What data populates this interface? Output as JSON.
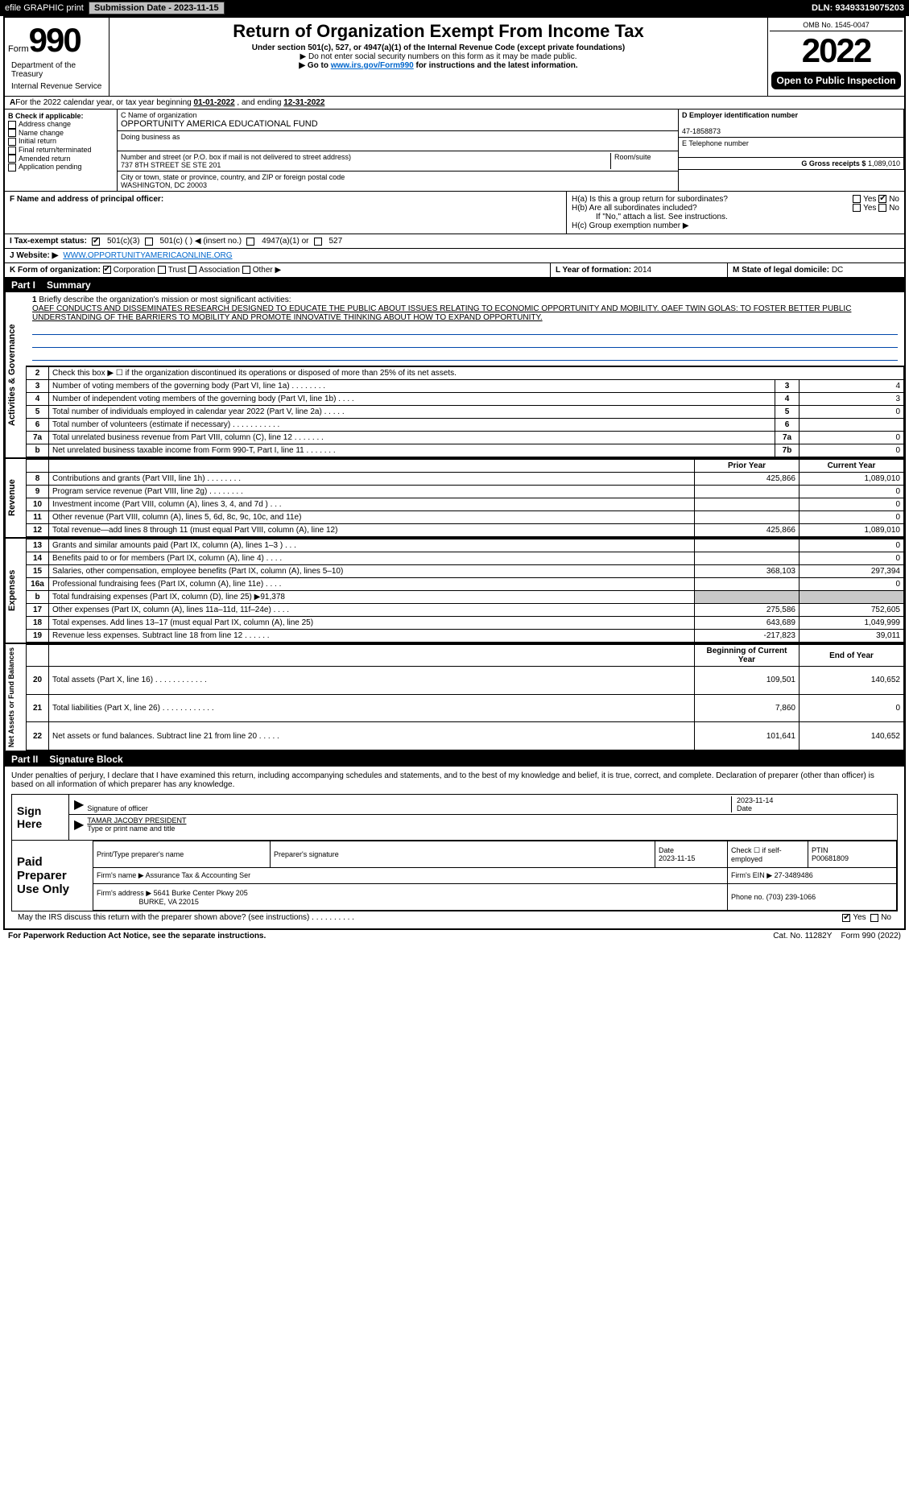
{
  "topbar": {
    "efile": "efile GRAPHIC print",
    "submission_label": "Submission Date - 2023-11-15",
    "dln": "DLN: 93493319075203"
  },
  "header": {
    "form_word": "Form",
    "form_num": "990",
    "title": "Return of Organization Exempt From Income Tax",
    "subtitle": "Under section 501(c), 527, or 4947(a)(1) of the Internal Revenue Code (except private foundations)",
    "warn": "▶ Do not enter social security numbers on this form as it may be made public.",
    "goto_pre": "▶ Go to ",
    "goto_link": "www.irs.gov/Form990",
    "goto_post": " for instructions and the latest information.",
    "omb": "OMB No. 1545-0047",
    "year": "2022",
    "open": "Open to Public Inspection",
    "dept": "Department of the Treasury",
    "irs": "Internal Revenue Service"
  },
  "A": {
    "text_pre": "For the 2022 calendar year, or tax year beginning ",
    "begin": "01-01-2022",
    "mid": " , and ending ",
    "end": "12-31-2022"
  },
  "B": {
    "label": "B Check if applicable:",
    "opts": [
      "Address change",
      "Name change",
      "Initial return",
      "Final return/terminated",
      "Amended return",
      "Application pending"
    ]
  },
  "C": {
    "name_label": "C Name of organization",
    "name": "OPPORTUNITY AMERICA EDUCATIONAL FUND",
    "dba_label": "Doing business as",
    "dba": "",
    "street_label": "Number and street (or P.O. box if mail is not delivered to street address)",
    "room_label": "Room/suite",
    "street": "737 8TH STREET SE STE 201",
    "city_label": "City or town, state or province, country, and ZIP or foreign postal code",
    "city": "WASHINGTON, DC  20003"
  },
  "D": {
    "label": "D Employer identification number",
    "val": "47-1858873"
  },
  "E": {
    "label": "E Telephone number",
    "val": ""
  },
  "G": {
    "label": "G Gross receipts $",
    "val": "1,089,010"
  },
  "F": {
    "label": "F  Name and address of principal officer:",
    "val": ""
  },
  "H": {
    "a": "H(a)  Is this a group return for subordinates?",
    "b": "H(b)  Are all subordinates included?",
    "bnote": "If \"No,\" attach a list. See instructions.",
    "c": "H(c)  Group exemption number ▶",
    "yes": "Yes",
    "no": "No"
  },
  "I": {
    "label": "I  Tax-exempt status:",
    "opts": [
      "501(c)(3)",
      "501(c) (  ) ◀ (insert no.)",
      "4947(a)(1) or",
      "527"
    ]
  },
  "J": {
    "label": "J  Website: ▶",
    "val": "WWW.OPPORTUNITYAMERICAONLINE.ORG"
  },
  "K": {
    "label": "K Form of organization:",
    "opts": [
      "Corporation",
      "Trust",
      "Association",
      "Other ▶"
    ]
  },
  "L": {
    "label": "L Year of formation:",
    "val": "2014"
  },
  "M": {
    "label": "M State of legal domicile:",
    "val": "DC"
  },
  "partI": {
    "num": "Part I",
    "title": "Summary"
  },
  "mission": {
    "num": "1",
    "label": "Briefly describe the organization's mission or most significant activities:",
    "text": "OAEF CONDUCTS AND DISSEMINATES RESEARCH DESIGNED TO EDUCATE THE PUBLIC ABOUT ISSUES RELATING TO ECONOMIC OPPORTUNITY AND MOBILITY. OAEF TWIN GOLAS: TO FOSTER BETTER PUBLIC UNDERSTANDING OF THE BARRIERS TO MOBILITY AND PROMOTE INNOVATIVE THINKING ABOUT HOW TO EXPAND OPPORTUNITY."
  },
  "gov": {
    "side": "Activities & Governance",
    "rows": [
      {
        "n": "2",
        "d": "Check this box ▶ ☐ if the organization discontinued its operations or disposed of more than 25% of its net assets.",
        "box": "",
        "v": ""
      },
      {
        "n": "3",
        "d": "Number of voting members of the governing body (Part VI, line 1a)  .    .    .    .    .    .    .    .",
        "box": "3",
        "v": "4"
      },
      {
        "n": "4",
        "d": "Number of independent voting members of the governing body (Part VI, line 1b)   .    .    .    .",
        "box": "4",
        "v": "3"
      },
      {
        "n": "5",
        "d": "Total number of individuals employed in calendar year 2022 (Part V, line 2a)   .    .    .    .    .",
        "box": "5",
        "v": "0"
      },
      {
        "n": "6",
        "d": "Total number of volunteers (estimate if necessary)   .    .    .    .    .    .    .    .    .    .    .",
        "box": "6",
        "v": ""
      },
      {
        "n": "7a",
        "d": "Total unrelated business revenue from Part VIII, column (C), line 12   .    .    .    .    .    .    .",
        "box": "7a",
        "v": "0"
      },
      {
        "n": "b",
        "d": "Net unrelated business taxable income from Form 990-T, Part I, line 11   .    .    .    .    .    .    .",
        "box": "7b",
        "v": "0"
      }
    ]
  },
  "rev": {
    "side": "Revenue",
    "h1": "Prior Year",
    "h2": "Current Year",
    "rows": [
      {
        "n": "8",
        "d": "Contributions and grants (Part VIII, line 1h)   .    .    .    .    .    .    .    .",
        "p": "425,866",
        "c": "1,089,010"
      },
      {
        "n": "9",
        "d": "Program service revenue (Part VIII, line 2g)   .    .    .    .    .    .    .    .",
        "p": "",
        "c": "0"
      },
      {
        "n": "10",
        "d": "Investment income (Part VIII, column (A), lines 3, 4, and 7d )   .    .    .",
        "p": "",
        "c": "0"
      },
      {
        "n": "11",
        "d": "Other revenue (Part VIII, column (A), lines 5, 6d, 8c, 9c, 10c, and 11e)",
        "p": "",
        "c": "0"
      },
      {
        "n": "12",
        "d": "Total revenue—add lines 8 through 11 (must equal Part VIII, column (A), line 12)",
        "p": "425,866",
        "c": "1,089,010"
      }
    ]
  },
  "exp": {
    "side": "Expenses",
    "rows": [
      {
        "n": "13",
        "d": "Grants and similar amounts paid (Part IX, column (A), lines 1–3 )   .    .    .",
        "p": "",
        "c": "0"
      },
      {
        "n": "14",
        "d": "Benefits paid to or for members (Part IX, column (A), line 4)   .    .    .    .",
        "p": "",
        "c": "0"
      },
      {
        "n": "15",
        "d": "Salaries, other compensation, employee benefits (Part IX, column (A), lines 5–10)",
        "p": "368,103",
        "c": "297,394"
      },
      {
        "n": "16a",
        "d": "Professional fundraising fees (Part IX, column (A), line 11e)   .    .    .    .",
        "p": "",
        "c": "0"
      },
      {
        "n": "b",
        "d": "Total fundraising expenses (Part IX, column (D), line 25) ▶91,378",
        "p": "GREY",
        "c": "GREY"
      },
      {
        "n": "17",
        "d": "Other expenses (Part IX, column (A), lines 11a–11d, 11f–24e)   .    .    .    .",
        "p": "275,586",
        "c": "752,605"
      },
      {
        "n": "18",
        "d": "Total expenses. Add lines 13–17 (must equal Part IX, column (A), line 25)",
        "p": "643,689",
        "c": "1,049,999"
      },
      {
        "n": "19",
        "d": "Revenue less expenses. Subtract line 18 from line 12   .    .    .    .    .    .",
        "p": "-217,823",
        "c": "39,011"
      }
    ]
  },
  "net": {
    "side": "Net Assets or Fund Balances",
    "h1": "Beginning of Current Year",
    "h2": "End of Year",
    "rows": [
      {
        "n": "20",
        "d": "Total assets (Part X, line 16)   .    .    .    .    .    .    .    .    .    .    .    .",
        "p": "109,501",
        "c": "140,652"
      },
      {
        "n": "21",
        "d": "Total liabilities (Part X, line 26)   .    .    .    .    .    .    .    .    .    .    .    .",
        "p": "7,860",
        "c": "0"
      },
      {
        "n": "22",
        "d": "Net assets or fund balances. Subtract line 21 from line 20   .    .    .    .    .",
        "p": "101,641",
        "c": "140,652"
      }
    ]
  },
  "partII": {
    "num": "Part II",
    "title": "Signature Block"
  },
  "sig": {
    "pen": "Under penalties of perjury, I declare that I have examined this return, including accompanying schedules and statements, and to the best of my knowledge and belief, it is true, correct, and complete. Declaration of preparer (other than officer) is based on all information of which preparer has any knowledge.",
    "sign_here": "Sign Here",
    "sig_officer": "Signature of officer",
    "date": "2023-11-14",
    "date_l": "Date",
    "name": "TAMAR JACOBY PRESIDENT",
    "name_l": "Type or print name and title"
  },
  "paid": {
    "label": "Paid Preparer Use Only",
    "h": [
      "Print/Type preparer's name",
      "Preparer's signature",
      "Date",
      "Check ☐ if self-employed",
      "PTIN"
    ],
    "date": "2023-11-15",
    "ptin": "P00681809",
    "firm_l": "Firm's name   ▶",
    "firm": "Assurance Tax & Accounting Ser",
    "ein_l": "Firm's EIN ▶",
    "ein": "27-3489486",
    "addr_l": "Firm's address ▶",
    "addr1": "5641 Burke Center Pkwy 205",
    "addr2": "BURKE, VA  22015",
    "phone_l": "Phone no.",
    "phone": "(703) 239-1066"
  },
  "discuss": {
    "q": "May the IRS discuss this return with the preparer shown above? (see instructions)   .    .    .    .    .    .    .    .    .    .",
    "yes": "Yes",
    "no": "No"
  },
  "footer": {
    "pra": "For Paperwork Reduction Act Notice, see the separate instructions.",
    "cat": "Cat. No. 11282Y",
    "form": "Form 990 (2022)"
  },
  "colors": {
    "link": "#0066cc",
    "rule": "#0047ab",
    "grey": "#c8c8c8"
  }
}
